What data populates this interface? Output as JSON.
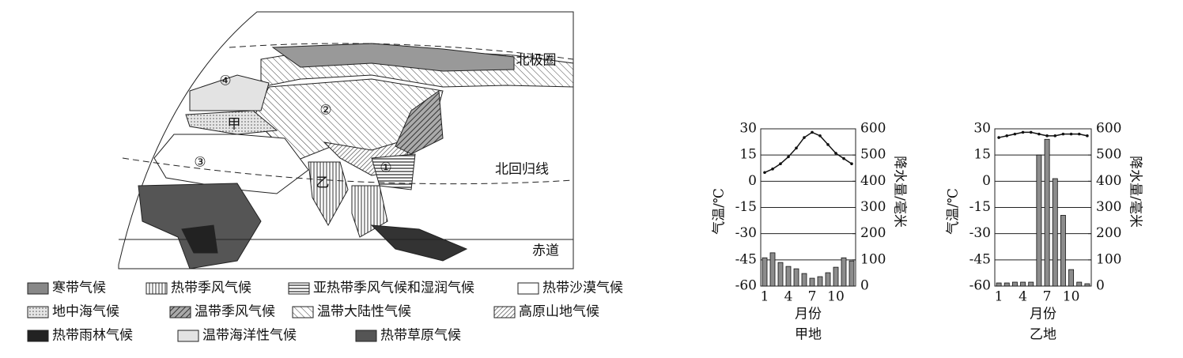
{
  "map": {
    "lines": [
      "北极圈",
      "北回归线",
      "赤道"
    ],
    "markers": [
      "①",
      "②",
      "③",
      "④",
      "甲",
      "乙"
    ],
    "legend": [
      "寒带气候",
      "热带季风气候",
      "亚热带季风气候和湿润气候",
      "热带沙漠气候",
      "地中海气候",
      "温带季风气候",
      "温带大陆性气候",
      "高原山地气候",
      "热带雨林气候",
      "温带海洋性气候",
      "热带草原气候"
    ]
  },
  "chart_data": [
    {
      "type": "combo",
      "title": "甲地",
      "xlabel": "月份",
      "ylabel": "气温/℃",
      "y2label": "降水量/毫米",
      "x": [
        1,
        2,
        3,
        4,
        5,
        6,
        7,
        8,
        9,
        10,
        11,
        12
      ],
      "xlim": [
        0.5,
        12.5
      ],
      "xticks": [
        1,
        4,
        7,
        10
      ],
      "ylim": [
        -60,
        30
      ],
      "yticks": [
        -60,
        -45,
        -30,
        -15,
        0,
        15,
        30
      ],
      "y2lim": [
        0,
        600
      ],
      "y2ticks": [
        0,
        100,
        200,
        300,
        400,
        500,
        600
      ],
      "grid": true,
      "series": [
        {
          "type": "line",
          "color": "#111111",
          "values": [
            5,
            7,
            10,
            14,
            19,
            25,
            28,
            26,
            21,
            16,
            13,
            10
          ]
        },
        {
          "type": "bar",
          "axis": "y2",
          "color": "#8c8c8c",
          "values": [
            108,
            127,
            90,
            75,
            66,
            48,
            30,
            36,
            51,
            72,
            108,
            96
          ]
        }
      ]
    },
    {
      "type": "combo",
      "title": "乙地",
      "xlabel": "月份",
      "ylabel": "气温/℃",
      "y2label": "降水量/毫米",
      "x": [
        1,
        2,
        3,
        4,
        5,
        6,
        7,
        8,
        9,
        10,
        11,
        12
      ],
      "xlim": [
        0.5,
        12.5
      ],
      "xticks": [
        1,
        4,
        7,
        10
      ],
      "ylim": [
        -60,
        30
      ],
      "yticks": [
        -60,
        -45,
        -30,
        -15,
        0,
        15,
        30
      ],
      "y2lim": [
        0,
        600
      ],
      "y2ticks": [
        0,
        100,
        200,
        300,
        400,
        500,
        600
      ],
      "grid": true,
      "series": [
        {
          "type": "line",
          "color": "#111111",
          "values": [
            25,
            26,
            27,
            28,
            28,
            27,
            26,
            26,
            27,
            27,
            27,
            26
          ]
        },
        {
          "type": "bar",
          "axis": "y2",
          "color": "#8c8c8c",
          "values": [
            12,
            12,
            15,
            15,
            15,
            500,
            560,
            410,
            270,
            63,
            15,
            9
          ]
        }
      ]
    }
  ]
}
